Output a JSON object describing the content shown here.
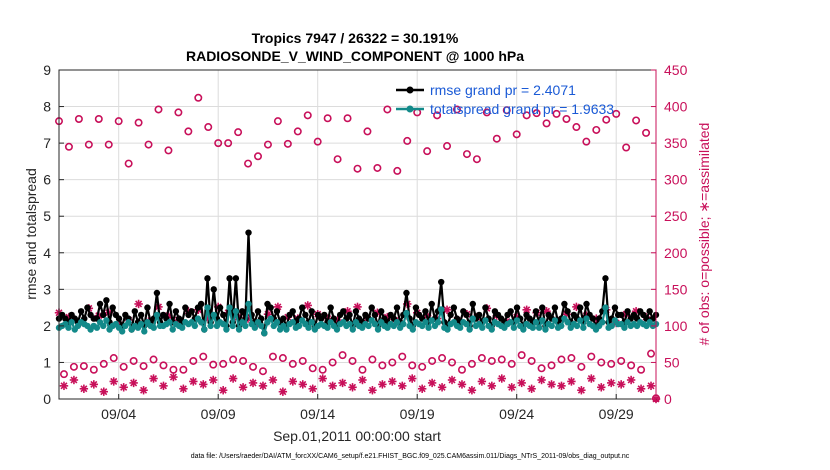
{
  "chart_data": {
    "type": "line",
    "title": "Tropics 7947 / 26322 = 30.191%",
    "subtitle": "RADIOSONDE_V_WIND_COMPONENT @ 1000 hPa",
    "xlabel": "Sep.01,2011 00:00:00 start",
    "ylabel": "rmse and totalspread",
    "ylabel_right": "# of obs: o=possible; ∗=assimilated",
    "footnote": "data file: /Users/raeder/DAI/ATM_forcXX/CAM6_setup/f.e21.FHIST_BGC.f09_025.CAM6assim.011/Diags_NTrS_2011-09/obs_diag_output.nc",
    "x_tick_labels": [
      "09/04",
      "09/09",
      "09/14",
      "09/19",
      "09/24",
      "09/29"
    ],
    "x_tick_days": [
      4,
      9,
      14,
      19,
      24,
      29
    ],
    "xlim": [
      1.0,
      31.0
    ],
    "ylim": [
      0,
      9
    ],
    "yticks": [
      "0",
      "1",
      "2",
      "3",
      "4",
      "5",
      "6",
      "7",
      "8",
      "9"
    ],
    "ylim_right": [
      0,
      450
    ],
    "yticks_right": [
      "0",
      "50",
      "100",
      "150",
      "200",
      "250",
      "300",
      "350",
      "400",
      "450"
    ],
    "legend": [
      {
        "label": "rmse grand pr = 2.4071",
        "color": "#000000",
        "marker": "filled-circle"
      },
      {
        "label": "totalspread grand pr = 1.9633",
        "color": "#138a8a",
        "marker": "filled-circle"
      }
    ],
    "colors": {
      "rmse": "#000000",
      "spread": "#138a8a",
      "obs": "#c8105a",
      "grid": "#dcdcdc"
    },
    "series": [
      {
        "name": "rmse",
        "axis": "left",
        "color": "#000000",
        "values": [
          2.2,
          2.3,
          2.2,
          2.1,
          2.3,
          2.2,
          2.1,
          2.4,
          2.2,
          2.5,
          2.3,
          2.2,
          2.2,
          2.6,
          2.3,
          2.7,
          2.1,
          2.5,
          2.3,
          2.2,
          2.0,
          2.3,
          2.2,
          1.9,
          2.4,
          2.1,
          2.3,
          2.0,
          2.5,
          2.1,
          2.2,
          2.9,
          2.1,
          2.3,
          2.2,
          2.6,
          2.1,
          2.4,
          2.2,
          2.1,
          2.5,
          2.3,
          2.4,
          2.2,
          2.5,
          2.6,
          1.9,
          3.3,
          2.1,
          3.0,
          2.2,
          2.5,
          2.3,
          2.0,
          3.3,
          2.1,
          3.3,
          2.0,
          2.4,
          2.2,
          4.55,
          2.3,
          2.1,
          2.4,
          2.2,
          1.8,
          2.6,
          2.5,
          2.2,
          2.4,
          2.1,
          2.2,
          2.0,
          2.3,
          2.4,
          2.1,
          2.2,
          2.5,
          2.3,
          2.1,
          2.4,
          2.0,
          2.3,
          2.2,
          2.3,
          2.1,
          2.5,
          2.2,
          2.0,
          2.3,
          2.4,
          2.2,
          2.3,
          2.0,
          2.4,
          2.2,
          2.1,
          2.3,
          2.2,
          2.5,
          2.3,
          2.0,
          2.4,
          2.2,
          2.1,
          2.3,
          2.2,
          2.5,
          2.1,
          2.3,
          2.9,
          2.2,
          2.0,
          2.5,
          2.3,
          2.2,
          2.4,
          2.1,
          2.6,
          2.2,
          2.4,
          3.2,
          2.1,
          2.0,
          2.3,
          2.5,
          2.2,
          2.1,
          2.4,
          2.3,
          2.0,
          2.6,
          2.2,
          2.3,
          2.1,
          2.5,
          2.2,
          2.0,
          2.4,
          2.3,
          2.2,
          2.1,
          2.3,
          2.4,
          2.1,
          2.5,
          2.2,
          2.0,
          2.3,
          2.2,
          2.1,
          2.4,
          2.1,
          2.5,
          2.0,
          2.3,
          2.2,
          2.5,
          2.1,
          2.2,
          2.6,
          2.4,
          2.1,
          2.3,
          2.2,
          2.5,
          2.1,
          2.6,
          2.3,
          2.2,
          2.0,
          2.2,
          2.4,
          3.3,
          2.1,
          2.2,
          2.5,
          2.3,
          2.3,
          2.1,
          2.4,
          2.2,
          2.3,
          2.2,
          2.4,
          2.3,
          2.2,
          2.4,
          2.2,
          2.3
        ]
      },
      {
        "name": "totalspread",
        "axis": "left",
        "color": "#138a8a",
        "values": [
          1.95,
          2.0,
          2.05,
          1.95,
          2.1,
          1.9,
          2.0,
          2.1,
          2.05,
          2.0,
          1.9,
          2.0,
          1.95,
          2.1,
          2.0,
          2.15,
          1.9,
          2.0,
          2.05,
          1.95,
          1.85,
          2.0,
          2.1,
          1.9,
          2.0,
          1.95,
          2.05,
          1.85,
          2.1,
          2.0,
          1.95,
          2.3,
          2.0,
          2.0,
          2.05,
          2.1,
          1.9,
          2.05,
          2.0,
          1.95,
          2.1,
          2.05,
          2.1,
          2.0,
          2.2,
          2.1,
          1.9,
          2.5,
          2.0,
          2.3,
          2.0,
          2.1,
          2.05,
          1.9,
          2.5,
          2.0,
          2.4,
          1.9,
          2.1,
          2.0,
          2.6,
          2.05,
          1.95,
          2.1,
          2.0,
          1.8,
          2.1,
          2.2,
          2.0,
          2.1,
          1.9,
          2.0,
          1.9,
          2.05,
          2.1,
          1.95,
          2.0,
          2.15,
          2.05,
          1.95,
          2.1,
          1.9,
          2.0,
          2.05,
          2.0,
          1.95,
          2.1,
          2.0,
          1.9,
          2.05,
          2.1,
          2.0,
          2.05,
          1.9,
          2.1,
          2.0,
          1.95,
          2.05,
          2.0,
          2.15,
          2.05,
          1.9,
          2.1,
          2.0,
          1.95,
          2.05,
          2.0,
          2.1,
          1.95,
          2.05,
          2.35,
          2.0,
          1.9,
          2.1,
          2.05,
          2.0,
          2.1,
          1.95,
          2.15,
          2.0,
          2.1,
          2.45,
          1.95,
          1.9,
          2.05,
          2.1,
          2.0,
          1.95,
          2.1,
          2.05,
          1.9,
          2.2,
          2.0,
          2.05,
          1.95,
          2.15,
          2.0,
          1.9,
          2.1,
          2.05,
          2.0,
          1.95,
          2.05,
          2.1,
          1.95,
          2.15,
          2.0,
          1.9,
          2.05,
          2.0,
          1.95,
          2.1,
          1.95,
          2.15,
          1.9,
          2.05,
          2.0,
          2.15,
          1.95,
          2.0,
          2.2,
          2.1,
          1.95,
          2.05,
          2.0,
          2.15,
          1.95,
          2.2,
          2.05,
          2.0,
          1.9,
          2.0,
          2.1,
          2.5,
          1.95,
          2.0,
          2.15,
          2.05,
          2.05,
          1.95,
          2.1,
          2.0,
          2.05,
          2.0,
          2.1,
          2.05,
          2.0,
          2.1,
          2.0,
          2.05
        ]
      },
      {
        "name": "obs possible (00/12Z)",
        "axis": "right",
        "color": "#c8105a",
        "marker": "open-circle",
        "x_start": 1.0,
        "x_step": 0.5,
        "values": [
          380,
          345,
          383,
          348,
          383,
          348,
          380,
          322,
          378,
          348,
          396,
          340,
          392,
          366,
          412,
          372,
          350,
          350,
          365,
          322,
          332,
          348,
          380,
          349,
          366,
          388,
          352,
          384,
          328,
          384,
          315,
          366,
          316,
          396,
          312,
          353,
          392,
          339,
          388,
          346,
          396,
          335,
          328,
          392,
          356,
          395,
          362,
          388,
          391,
          377,
          390,
          383,
          372,
          352,
          368,
          382,
          390,
          344,
          381,
          364,
          1
        ]
      },
      {
        "name": "obs possible (06/18Z)",
        "axis": "right",
        "color": "#c8105a",
        "marker": "open-circle",
        "x_start": 1.25,
        "x_step": 0.5,
        "values": [
          34,
          44,
          45,
          40,
          48,
          56,
          44,
          52,
          45,
          54,
          46,
          40,
          40,
          52,
          58,
          47,
          48,
          54,
          52,
          44,
          38,
          58,
          56,
          48,
          52,
          42,
          40,
          50,
          60,
          52,
          40,
          54,
          46,
          50,
          58,
          46,
          44,
          52,
          56,
          50,
          40,
          48,
          56,
          52,
          54,
          48,
          60,
          52,
          42,
          46,
          54,
          56,
          44,
          58,
          50,
          48,
          52,
          46,
          40,
          62
        ]
      },
      {
        "name": "obs assimilated (00/12Z)",
        "axis": "right",
        "color": "#c8105a",
        "marker": "asterisk",
        "x_start": 1.0,
        "x_step": 0.5,
        "values": [
          118,
          112,
          105,
          124,
          114,
          118,
          102,
          108,
          130,
          106,
          126,
          114,
          108,
          120,
          122,
          110,
          126,
          118,
          112,
          110,
          104,
          116,
          126,
          112,
          110,
          128,
          116,
          110,
          108,
          120,
          126,
          110,
          118,
          112,
          106,
          130,
          118,
          114,
          110,
          122,
          108,
          116,
          112,
          124,
          114,
          106,
          112,
          122,
          118,
          120,
          108,
          116,
          126,
          114,
          110,
          122,
          104,
          116,
          120,
          112,
          0
        ]
      },
      {
        "name": "obs assimilated (06/18Z)",
        "axis": "right",
        "color": "#c8105a",
        "marker": "asterisk",
        "x_start": 1.25,
        "x_step": 0.5,
        "values": [
          18,
          26,
          14,
          20,
          10,
          24,
          16,
          22,
          12,
          28,
          18,
          30,
          14,
          24,
          20,
          26,
          12,
          28,
          16,
          22,
          18,
          26,
          10,
          24,
          20,
          14,
          28,
          18,
          22,
          16,
          26,
          12,
          20,
          24,
          18,
          28,
          14,
          22,
          16,
          26,
          20,
          12,
          24,
          18,
          28,
          16,
          22,
          14,
          26,
          20,
          18,
          24,
          12,
          28,
          16,
          22,
          20,
          26,
          14,
          18
        ]
      }
    ]
  }
}
